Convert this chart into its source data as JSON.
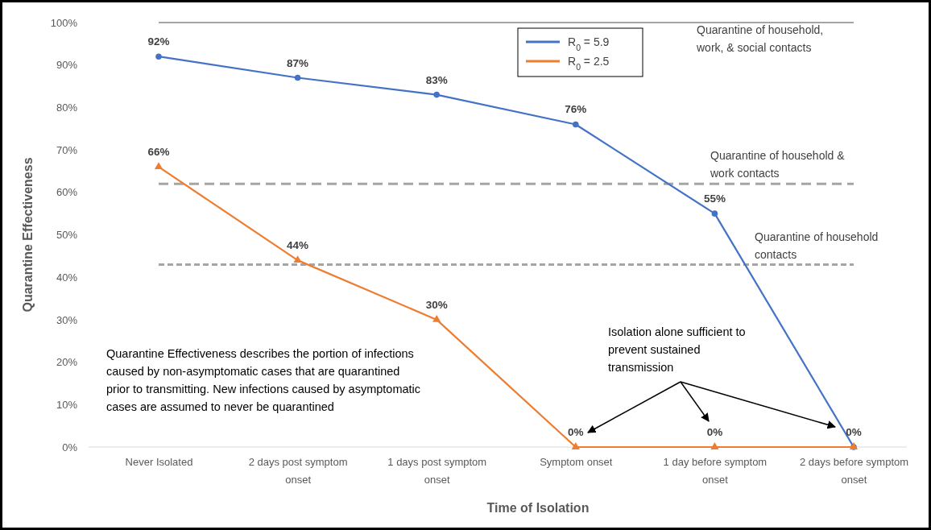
{
  "chart_data": {
    "type": "line",
    "xlabel": "Time of Isolation",
    "ylabel": "Quarantine Effectiveness",
    "categories": [
      "Never Isolated",
      "2 days post symptom onset",
      "1 days post symptom onset",
      "Symptom onset",
      "1 day before symptom onset",
      "2 days before symptom onset"
    ],
    "series": [
      {
        "name": "R$_{0}$ = 5.9",
        "color": "#4472c4",
        "marker": "circle",
        "values": [
          92,
          87,
          83,
          76,
          55,
          0
        ],
        "value_labels": [
          "92%",
          "87%",
          "83%",
          "76%",
          "55%",
          null
        ]
      },
      {
        "name": "R$_{0}$ = 2.5",
        "color": "#ed7d31",
        "marker": "triangle",
        "values": [
          66,
          44,
          30,
          0,
          0,
          0
        ],
        "value_labels": [
          "66%",
          "44%",
          "30%",
          "0%",
          "0%",
          "0%"
        ]
      }
    ],
    "ylim": [
      0,
      100
    ],
    "yticks": [
      {
        "value": 0,
        "label": "0%"
      },
      {
        "value": 10,
        "label": "10%"
      },
      {
        "value": 20,
        "label": "20%"
      },
      {
        "value": 30,
        "label": "30%"
      },
      {
        "value": 40,
        "label": "40%"
      },
      {
        "value": 50,
        "label": "50%"
      },
      {
        "value": 60,
        "label": "60%"
      },
      {
        "value": 70,
        "label": "70%"
      },
      {
        "value": 80,
        "label": "80%"
      },
      {
        "value": 90,
        "label": "90%"
      },
      {
        "value": 100,
        "label": "100%"
      }
    ],
    "grid": false,
    "legend": "top",
    "ref_lines": [
      {
        "axis": "y",
        "value": 100,
        "label": "Quarantine of household, work, & social contacts",
        "color": "#a5a5a5",
        "line_style": "solid"
      },
      {
        "axis": "y",
        "value": 62,
        "label": "Quarantine of household & work contacts",
        "color": "#a5a5a5",
        "line_style": "dashed"
      },
      {
        "axis": "y",
        "value": 43,
        "label": "Quarantine of household contacts",
        "color": "#a5a5a5",
        "line_style": "dotted"
      }
    ],
    "annotations": [
      "Quarantine Effectiveness  describes the portion of infections caused by non-asymptomatic cases that are quarantined prior to transmitting. New infections caused by asymptomatic cases are assumed to never be quarantined",
      "Isolation alone sufficient to prevent sustained transmission"
    ]
  }
}
